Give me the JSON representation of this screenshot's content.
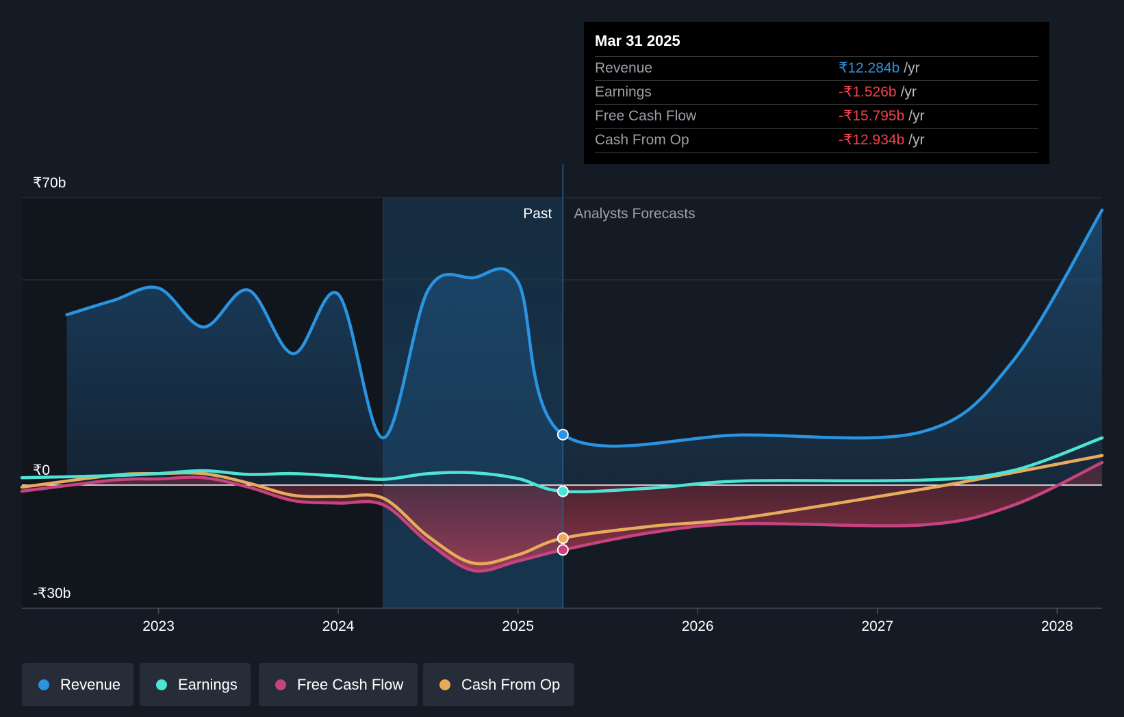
{
  "chart_data": {
    "type": "line",
    "ylim": [
      -30,
      70
    ],
    "y_ticks": [
      {
        "value": 70,
        "label": "₹70b"
      },
      {
        "value": 0,
        "label": "₹0"
      },
      {
        "value": -30,
        "label": "-₹30b"
      }
    ],
    "x_ticks": [
      {
        "value": 2023.0,
        "label": "2023"
      },
      {
        "value": 2024.0,
        "label": "2024"
      },
      {
        "value": 2025.0,
        "label": "2025"
      },
      {
        "value": 2026.0,
        "label": "2026"
      },
      {
        "value": 2027.0,
        "label": "2027"
      },
      {
        "value": 2028.0,
        "label": "2028"
      }
    ],
    "xlim": [
      2022.24,
      2028.25
    ],
    "past_label": "Past",
    "forecast_label": "Analysts Forecasts",
    "past_shade_start": 2024.25,
    "divider_x": 2025.25,
    "grid": true,
    "series": [
      {
        "name": "Revenue",
        "color": "#2a94e0",
        "points": [
          [
            2022.49,
            41.5
          ],
          [
            2022.75,
            45.0
          ],
          [
            2023.0,
            48.0
          ],
          [
            2023.25,
            38.5
          ],
          [
            2023.5,
            47.5
          ],
          [
            2023.75,
            32.0
          ],
          [
            2024.0,
            46.5
          ],
          [
            2024.25,
            11.5
          ],
          [
            2024.5,
            47.5
          ],
          [
            2024.75,
            50.5
          ],
          [
            2025.0,
            49.5
          ],
          [
            2025.25,
            12.3
          ],
          [
            2026.25,
            12.2
          ],
          [
            2027.25,
            13.0
          ],
          [
            2027.75,
            30.0
          ],
          [
            2028.25,
            67.0
          ]
        ]
      },
      {
        "name": "Earnings",
        "color": "#4ee3d4",
        "points": [
          [
            2022.24,
            1.8
          ],
          [
            2022.75,
            2.3
          ],
          [
            2023.0,
            2.8
          ],
          [
            2023.25,
            3.5
          ],
          [
            2023.5,
            2.6
          ],
          [
            2023.75,
            2.8
          ],
          [
            2024.0,
            2.2
          ],
          [
            2024.25,
            1.4
          ],
          [
            2024.5,
            2.8
          ],
          [
            2024.75,
            3.0
          ],
          [
            2025.0,
            1.6
          ],
          [
            2025.25,
            -1.526
          ],
          [
            2025.75,
            -0.7
          ],
          [
            2026.25,
            1.0
          ],
          [
            2027.25,
            1.2
          ],
          [
            2027.75,
            3.5
          ],
          [
            2028.25,
            11.5
          ]
        ]
      },
      {
        "name": "Free Cash Flow",
        "color": "#c6437f",
        "points": [
          [
            2022.24,
            -1.5
          ],
          [
            2022.75,
            1.2
          ],
          [
            2023.0,
            1.5
          ],
          [
            2023.25,
            1.8
          ],
          [
            2023.5,
            -0.5
          ],
          [
            2023.75,
            -3.8
          ],
          [
            2024.0,
            -4.4
          ],
          [
            2024.25,
            -4.8
          ],
          [
            2024.5,
            -14.0
          ],
          [
            2024.75,
            -20.8
          ],
          [
            2025.0,
            -18.5
          ],
          [
            2025.25,
            -15.795
          ],
          [
            2025.75,
            -11.5
          ],
          [
            2026.25,
            -9.4
          ],
          [
            2027.25,
            -9.7
          ],
          [
            2027.75,
            -5.0
          ],
          [
            2028.25,
            5.5
          ]
        ]
      },
      {
        "name": "Cash From Op",
        "color": "#e8aa5b",
        "points": [
          [
            2022.24,
            -0.5
          ],
          [
            2022.75,
            2.4
          ],
          [
            2023.0,
            2.8
          ],
          [
            2023.25,
            2.8
          ],
          [
            2023.5,
            0.5
          ],
          [
            2023.75,
            -2.5
          ],
          [
            2024.0,
            -2.8
          ],
          [
            2024.25,
            -3.2
          ],
          [
            2024.5,
            -12.5
          ],
          [
            2024.75,
            -19.0
          ],
          [
            2025.0,
            -17.0
          ],
          [
            2025.25,
            -12.934
          ],
          [
            2025.75,
            -10.0
          ],
          [
            2026.25,
            -8.0
          ],
          [
            2027.25,
            -1.0
          ],
          [
            2027.75,
            3.0
          ],
          [
            2028.25,
            7.2
          ]
        ]
      }
    ],
    "markers": [
      {
        "series": "Revenue",
        "x": 2025.25,
        "y": 12.284
      },
      {
        "series": "Earnings",
        "x": 2025.25,
        "y": -1.526
      },
      {
        "series": "Cash From Op",
        "x": 2025.25,
        "y": -12.934
      },
      {
        "series": "Free Cash Flow",
        "x": 2025.25,
        "y": -15.795
      }
    ],
    "legend_placement": "bottom-left"
  },
  "tooltip": {
    "date": "Mar 31 2025",
    "rows": [
      {
        "label": "Revenue",
        "value": "₹12.284b",
        "unit": "/yr",
        "color": "#2a94e0"
      },
      {
        "label": "Earnings",
        "value": "-₹1.526b",
        "unit": "/yr",
        "color": "#f0434b"
      },
      {
        "label": "Free Cash Flow",
        "value": "-₹15.795b",
        "unit": "/yr",
        "color": "#f0434b"
      },
      {
        "label": "Cash From Op",
        "value": "-₹12.934b",
        "unit": "/yr",
        "color": "#f0434b"
      }
    ]
  },
  "legend": [
    {
      "label": "Revenue",
      "color": "#2a94e0"
    },
    {
      "label": "Earnings",
      "color": "#4ee3d4"
    },
    {
      "label": "Free Cash Flow",
      "color": "#c6437f"
    },
    {
      "label": "Cash From Op",
      "color": "#e8aa5b"
    }
  ]
}
